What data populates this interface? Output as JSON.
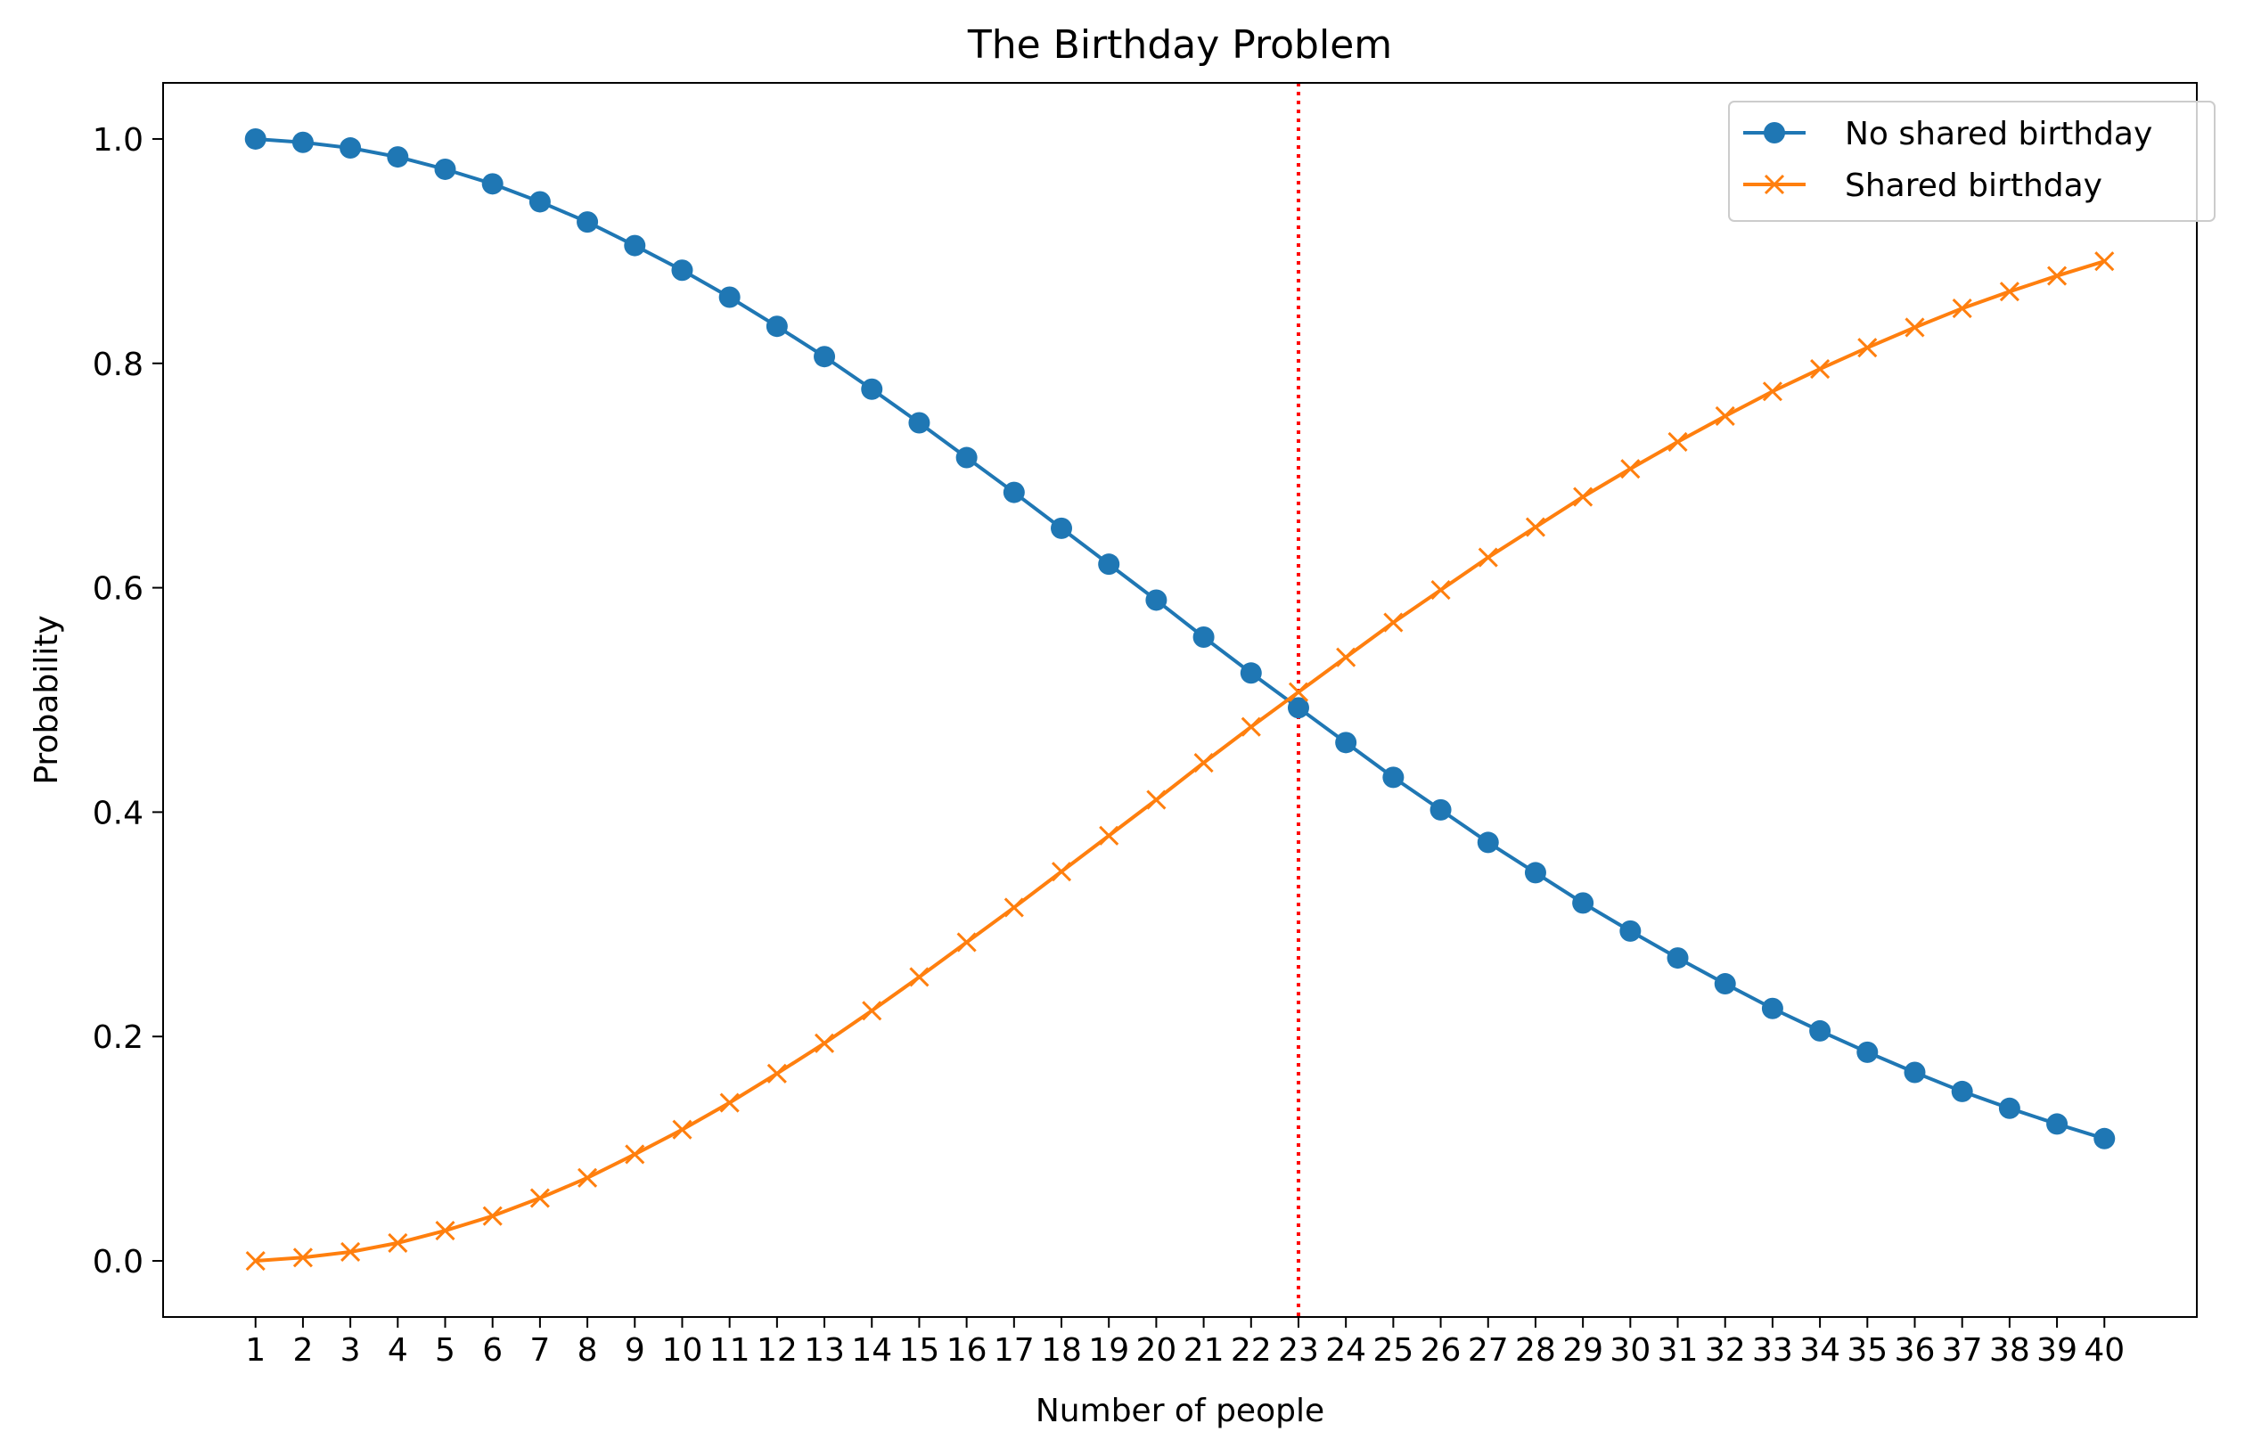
{
  "chart_data": {
    "type": "line",
    "title": "The Birthday Problem",
    "xlabel": "Number of people",
    "ylabel": "Probability",
    "x": [
      1,
      2,
      3,
      4,
      5,
      6,
      7,
      8,
      9,
      10,
      11,
      12,
      13,
      14,
      15,
      16,
      17,
      18,
      19,
      20,
      21,
      22,
      23,
      24,
      25,
      26,
      27,
      28,
      29,
      30,
      31,
      32,
      33,
      34,
      35,
      36,
      37,
      38,
      39,
      40
    ],
    "x_tick_labels": [
      "1",
      "2",
      "3",
      "4",
      "5",
      "6",
      "7",
      "8",
      "9",
      "10",
      "11",
      "12",
      "13",
      "14",
      "15",
      "16",
      "17",
      "18",
      "19",
      "20",
      "21",
      "22",
      "23",
      "24",
      "25",
      "26",
      "27",
      "28",
      "29",
      "30",
      "31",
      "32",
      "33",
      "34",
      "35",
      "36",
      "37",
      "38",
      "39",
      "40"
    ],
    "xlim": [
      -0.95,
      41.95
    ],
    "ylim": [
      -0.05,
      1.05
    ],
    "y_ticks": [
      0.0,
      0.2,
      0.4,
      0.6,
      0.8,
      1.0
    ],
    "y_tick_labels": [
      "0.0",
      "0.2",
      "0.4",
      "0.6",
      "0.8",
      "1.0"
    ],
    "grid": false,
    "legend_position": "top-right",
    "series": [
      {
        "name": "No shared birthday",
        "marker": "circle",
        "color": "#1f77b4",
        "values": [
          1.0,
          0.997,
          0.992,
          0.984,
          0.973,
          0.96,
          0.944,
          0.926,
          0.905,
          0.883,
          0.859,
          0.833,
          0.806,
          0.777,
          0.747,
          0.716,
          0.685,
          0.653,
          0.621,
          0.589,
          0.556,
          0.524,
          0.493,
          0.462,
          0.431,
          0.402,
          0.373,
          0.346,
          0.319,
          0.294,
          0.27,
          0.247,
          0.225,
          0.205,
          0.186,
          0.168,
          0.151,
          0.136,
          0.122,
          0.109
        ]
      },
      {
        "name": "Shared birthday",
        "marker": "x",
        "color": "#ff7f0e",
        "values": [
          0.0,
          0.003,
          0.008,
          0.016,
          0.027,
          0.04,
          0.056,
          0.074,
          0.095,
          0.117,
          0.141,
          0.167,
          0.194,
          0.223,
          0.253,
          0.284,
          0.315,
          0.347,
          0.379,
          0.411,
          0.444,
          0.476,
          0.507,
          0.538,
          0.569,
          0.598,
          0.627,
          0.654,
          0.681,
          0.706,
          0.73,
          0.753,
          0.775,
          0.795,
          0.814,
          0.832,
          0.849,
          0.864,
          0.878,
          0.891
        ]
      }
    ],
    "reference_line": {
      "orientation": "vertical",
      "x": 23,
      "style": "dotted",
      "color": "#ff0000"
    }
  }
}
